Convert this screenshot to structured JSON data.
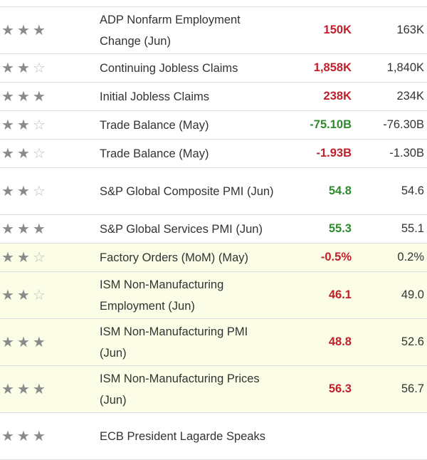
{
  "colors": {
    "actual_red": "#c0202a",
    "actual_green": "#2e8b2e",
    "highlight_row": "#fcfde6",
    "star_filled": "#8a8a8a",
    "star_empty": "#bdbdbd"
  },
  "rows": [
    {
      "stars": 3,
      "event": "ADP Nonfarm Employment Change (Jun)",
      "actual": "150K",
      "actual_color": "red",
      "forecast": "163K",
      "lines": 2,
      "highlight": false
    },
    {
      "stars": 2,
      "event": "Continuing Jobless Claims",
      "actual": "1,858K",
      "actual_color": "red",
      "forecast": "1,840K",
      "lines": 1,
      "highlight": false
    },
    {
      "stars": 3,
      "event": "Initial Jobless Claims",
      "actual": "238K",
      "actual_color": "red",
      "forecast": "234K",
      "lines": 1,
      "highlight": false
    },
    {
      "stars": 2,
      "event": "Trade Balance (May)",
      "actual": "-75.10B",
      "actual_color": "green",
      "forecast": "-76.30B",
      "lines": 1,
      "highlight": false
    },
    {
      "stars": 2,
      "event": "Trade Balance (May)",
      "actual": "-1.93B",
      "actual_color": "red",
      "forecast": "-1.30B",
      "lines": 1,
      "highlight": false
    },
    {
      "stars": 2,
      "event": "S&P Global Composite PMI (Jun)",
      "actual": "54.8",
      "actual_color": "green",
      "forecast": "54.6",
      "lines": 2,
      "highlight": false
    },
    {
      "stars": 3,
      "event": "S&P Global Services PMI (Jun)",
      "actual": "55.3",
      "actual_color": "green",
      "forecast": "55.1",
      "lines": 1,
      "highlight": false
    },
    {
      "stars": 2,
      "event": "Factory Orders (MoM) (May)",
      "actual": "-0.5%",
      "actual_color": "red",
      "forecast": "0.2%",
      "lines": 1,
      "highlight": true
    },
    {
      "stars": 2,
      "event": "ISM Non-Manufacturing Employment (Jun)",
      "actual": "46.1",
      "actual_color": "red",
      "forecast": "49.0",
      "lines": 2,
      "highlight": true
    },
    {
      "stars": 3,
      "event": "ISM Non-Manufacturing PMI (Jun)",
      "actual": "48.8",
      "actual_color": "red",
      "forecast": "52.6",
      "lines": 2,
      "highlight": true
    },
    {
      "stars": 3,
      "event": "ISM Non-Manufacturing Prices (Jun)",
      "actual": "56.3",
      "actual_color": "red",
      "forecast": "56.7",
      "lines": 2,
      "highlight": true
    },
    {
      "stars": 3,
      "event": "ECB President Lagarde Speaks",
      "actual": "",
      "actual_color": "red",
      "forecast": "",
      "lines": 2,
      "highlight": false
    }
  ]
}
